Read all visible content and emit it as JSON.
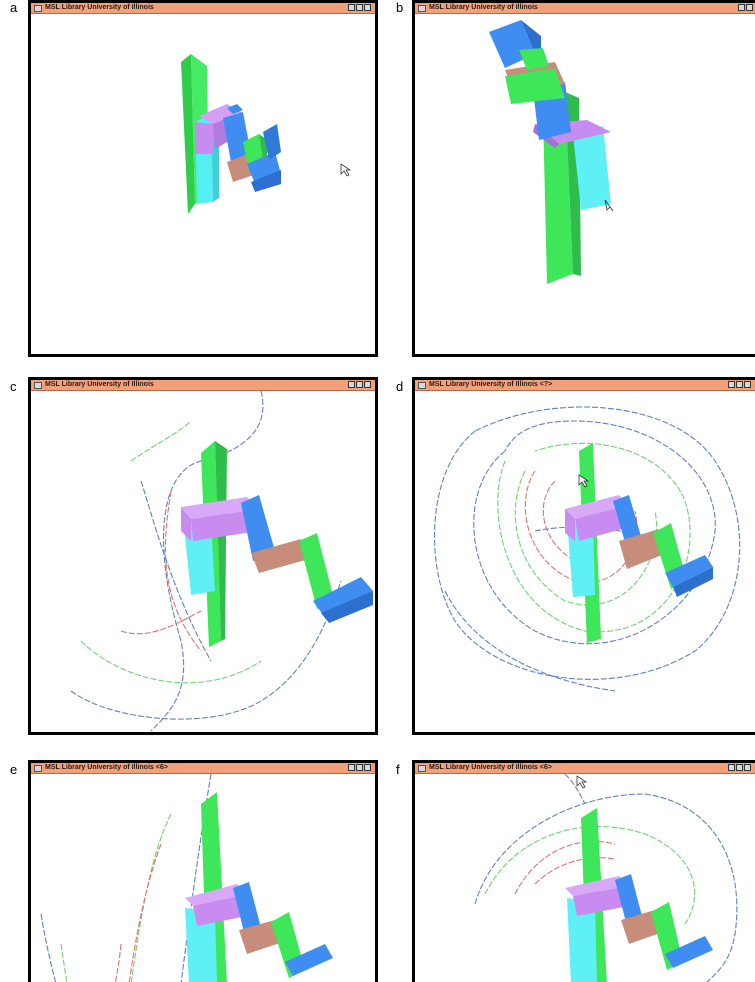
{
  "panels": [
    {
      "label": "a",
      "title": "MSL Library  University of Illinois"
    },
    {
      "label": "b",
      "title": "MSL Library  University of Illinois"
    },
    {
      "label": "c",
      "title": "MSL Library  University of Illinois"
    },
    {
      "label": "d",
      "title": "MSL Library  University of Illinois <?>"
    },
    {
      "label": "e",
      "title": "MSL Library  University of Illinois <6>"
    },
    {
      "label": "f",
      "title": "MSL Library  University of Illinois <6>"
    }
  ],
  "colors": {
    "titlebar": "#f2a07a",
    "green": "#3ee65a",
    "blue": "#3f8df0",
    "violet": "#c88cf0",
    "cyan": "#5ff0f5",
    "salmon": "#c88c7a",
    "trace_red": "#e07070",
    "trace_green": "#70d070",
    "trace_blue": "#6080c0"
  },
  "icons": [
    "minimize-icon",
    "maximize-icon",
    "close-icon",
    "pointer-cursor-icon"
  ]
}
